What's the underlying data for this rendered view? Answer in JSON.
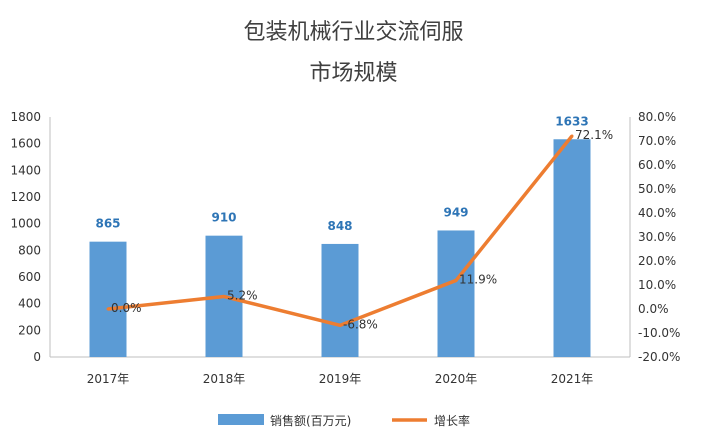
{
  "chart_data": {
    "type": "bar",
    "title": "包装机械行业交流伺服",
    "subtitle": "市场规模",
    "categories": [
      "2017年",
      "2018年",
      "2019年",
      "2020年",
      "2021年"
    ],
    "series": [
      {
        "name": "销售额(百万元)",
        "type": "bar",
        "axis": "left",
        "color": "#5B9BD5",
        "label_color": "#2E75B6",
        "values": [
          865,
          910,
          848,
          949,
          1633
        ],
        "labels": [
          "865",
          "910",
          "848",
          "949",
          "1633"
        ]
      },
      {
        "name": "增长率",
        "type": "line",
        "axis": "right",
        "color": "#ED7D31",
        "values": [
          0.0,
          5.2,
          -6.8,
          11.9,
          72.1
        ],
        "labels": [
          "0.0%",
          "5.2%",
          "-6.8%",
          "11.9%",
          "72.1%"
        ]
      }
    ],
    "y_left": {
      "min": 0,
      "max": 1800,
      "ticks": [
        "0",
        "200",
        "400",
        "600",
        "800",
        "1000",
        "1200",
        "1400",
        "1600",
        "1800"
      ]
    },
    "y_right": {
      "min": -20,
      "max": 80,
      "ticks": [
        "-20.0%",
        "-10.0%",
        "0.0%",
        "10.0%",
        "20.0%",
        "30.0%",
        "40.0%",
        "50.0%",
        "60.0%",
        "70.0%",
        "80.0%"
      ]
    },
    "grid": false,
    "legend_position": "bottom"
  }
}
